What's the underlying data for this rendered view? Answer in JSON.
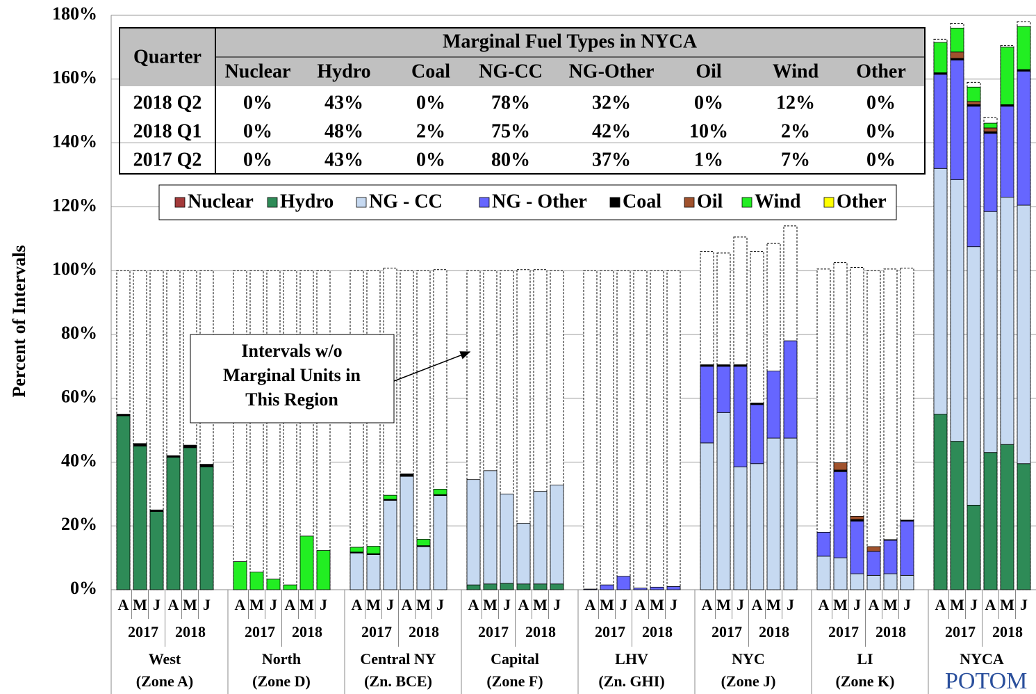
{
  "chart_data": {
    "type": "stacked_bar",
    "y_label": "Percent of Intervals",
    "ylim": [
      0,
      180
    ],
    "yticks": [
      {
        "value": 0,
        "label": "0%"
      },
      {
        "value": 20,
        "label": "20%"
      },
      {
        "value": 40,
        "label": "40%"
      },
      {
        "value": 60,
        "label": "60%"
      },
      {
        "value": 80,
        "label": "80%"
      },
      {
        "value": 100,
        "label": "100%"
      },
      {
        "value": 120,
        "label": "120%"
      },
      {
        "value": 140,
        "label": "140%"
      },
      {
        "value": 160,
        "label": "160%"
      },
      {
        "value": 180,
        "label": "180%"
      }
    ],
    "grid": true,
    "categories": [
      "A",
      "M",
      "J",
      "A",
      "M",
      "J",
      "A",
      "M",
      "J",
      "A",
      "M",
      "J",
      "A",
      "M",
      "J",
      "A",
      "M",
      "J",
      "A",
      "M",
      "J",
      "A",
      "M",
      "J",
      "A",
      "M",
      "J",
      "A",
      "M",
      "J",
      "A",
      "M",
      "J",
      "A",
      "M",
      "J",
      "A",
      "M",
      "J",
      "A",
      "M",
      "J",
      "A",
      "M",
      "J",
      "A",
      "M",
      "J"
    ],
    "years": [
      "2017",
      "2018",
      "2017",
      "2018",
      "2017",
      "2018",
      "2017",
      "2018",
      "2017",
      "2018",
      "2017",
      "2018",
      "2017",
      "2018",
      "2017",
      "2018"
    ],
    "group_labels": [
      "West",
      "North",
      "Central NY",
      "Capital",
      "LHV",
      "NYC",
      "LI",
      "NYCA"
    ],
    "group_sublabels": [
      "(Zone A)",
      "(Zone D)",
      "(Zn. BCE)",
      "(Zone F)",
      "(Zn. GHI)",
      "(Zone J)",
      "(Zone K)",
      ""
    ],
    "series": [
      {
        "name": "Nuclear",
        "color": "#a33a3a",
        "values": [
          0,
          0,
          0,
          0,
          0,
          0,
          0,
          0,
          0,
          0,
          0,
          0,
          0,
          0,
          0,
          0,
          0,
          0,
          0,
          0,
          0,
          0,
          0,
          0,
          0,
          0,
          0,
          0,
          0,
          0,
          0,
          0,
          0,
          0,
          0,
          0,
          0,
          0,
          0,
          0,
          0,
          0,
          0,
          0,
          0,
          0,
          0,
          0
        ]
      },
      {
        "name": "Hydro",
        "color": "#2e8b57",
        "values": [
          54.5,
          45,
          24.5,
          41.5,
          44.5,
          38.5,
          0,
          0,
          0,
          0,
          0,
          0,
          0,
          0,
          0,
          0,
          0,
          0,
          1.5,
          1.8,
          2,
          1.8,
          1.8,
          1.8,
          0,
          0,
          0,
          0,
          0,
          0,
          0,
          0,
          0,
          0,
          0,
          0,
          0,
          0,
          0,
          0,
          0,
          0,
          55,
          46.5,
          26.5,
          43,
          45.5,
          39.5
        ]
      },
      {
        "name": "NG - CC",
        "color": "#c6d9f1",
        "values": [
          0,
          0,
          0,
          0,
          0,
          0,
          0,
          0,
          0,
          0,
          0,
          0,
          11.5,
          11,
          28,
          35.5,
          13.5,
          29.5,
          33,
          35.5,
          28,
          19,
          29,
          31,
          0,
          0,
          0,
          0,
          0,
          0,
          46,
          55.5,
          38.5,
          39.5,
          47.5,
          47.5,
          10.5,
          10,
          5,
          4.5,
          5,
          4.5,
          77,
          82,
          81,
          75.5,
          77.5,
          81
        ]
      },
      {
        "name": "NG - Other",
        "color": "#6666ff",
        "values": [
          0,
          0,
          0,
          0,
          0,
          0,
          0,
          0,
          0,
          0,
          0,
          0,
          0,
          0,
          0,
          0,
          0,
          0,
          0,
          0,
          0,
          0,
          0,
          0,
          0.2,
          1.5,
          4.2,
          0.5,
          0.8,
          1.0,
          24,
          14.5,
          31.5,
          18.5,
          21,
          30.5,
          7.5,
          27,
          16.5,
          7.5,
          10.5,
          17,
          29.5,
          37.5,
          44,
          24.5,
          28.5,
          42
        ]
      },
      {
        "name": "Coal",
        "color": "#000000",
        "values": [
          0.5,
          0.8,
          0.5,
          0.5,
          0.8,
          0.8,
          0,
          0,
          0,
          0,
          0,
          0,
          0.3,
          0.3,
          0.3,
          0.8,
          0.3,
          0.3,
          0,
          0,
          0,
          0,
          0,
          0,
          0,
          0,
          0,
          0,
          0,
          0,
          0.5,
          0.5,
          0.5,
          0.5,
          0,
          0,
          0,
          0.5,
          0.5,
          0,
          0.2,
          0.3,
          0.5,
          0.5,
          0.5,
          0.5,
          0.5,
          0.5
        ]
      },
      {
        "name": "Oil",
        "color": "#a0522d",
        "values": [
          0,
          0,
          0,
          0,
          0,
          0,
          0,
          0,
          0,
          0,
          0,
          0,
          0,
          0,
          0,
          0,
          0,
          0,
          0,
          0,
          0,
          0,
          0,
          0,
          0,
          0,
          0,
          0,
          0,
          0,
          0,
          0,
          0,
          0,
          0,
          0,
          0,
          2.3,
          1,
          1.5,
          0,
          0,
          0,
          2,
          1,
          1.2,
          0,
          0
        ]
      },
      {
        "name": "Wind",
        "color": "#22ee22",
        "values": [
          0,
          0,
          0,
          0,
          0,
          0,
          8.8,
          5.5,
          3.3,
          1.5,
          16.8,
          12.3,
          1.5,
          2.3,
          1.3,
          0,
          2,
          1.7,
          0,
          0,
          0,
          0,
          0,
          0,
          0,
          0,
          0,
          0,
          0,
          0,
          0,
          0,
          0,
          0,
          0,
          0,
          0,
          0,
          0,
          0,
          0,
          0,
          9.5,
          7.5,
          4.5,
          1.5,
          18,
          13.5
        ]
      },
      {
        "name": "Other",
        "color": "#ffff00",
        "values": [
          0,
          0,
          0,
          0,
          0,
          0,
          0,
          0,
          0,
          0,
          0,
          0,
          0,
          0,
          0,
          0,
          0,
          0,
          0,
          0,
          0,
          0,
          0,
          0,
          0,
          0,
          0,
          0,
          0,
          0,
          0,
          0,
          0,
          0,
          0,
          0,
          0,
          0,
          0,
          0,
          0,
          0,
          0,
          0,
          0,
          0,
          0,
          0
        ]
      }
    ],
    "outline_values": [
      100,
      100,
      100,
      100,
      100,
      100,
      100,
      100,
      100,
      100,
      100,
      100,
      100,
      100,
      100.8,
      100,
      100,
      100.3,
      100,
      100,
      100,
      100.3,
      100.3,
      100,
      100,
      100,
      100,
      100,
      100,
      100,
      106,
      105.5,
      110.5,
      106,
      108.5,
      114,
      100.5,
      102.5,
      101,
      100,
      100.5,
      100.8,
      172.5,
      177.5,
      159,
      148,
      170.5,
      178
    ],
    "annotation": [
      "Intervals w/o",
      "Marginal Units in",
      "This Region"
    ],
    "logo": "POTOM",
    "table": {
      "quarter_header": "Quarter",
      "title": "Marginal Fuel Types in NYCA",
      "columns": [
        "Nuclear",
        "Hydro",
        "Coal",
        "NG-CC",
        "NG-Other",
        "Oil",
        "Wind",
        "Other"
      ],
      "rows": [
        [
          "2018 Q2",
          "0%",
          "43%",
          "0%",
          "78%",
          "32%",
          "0%",
          "12%",
          "0%"
        ],
        [
          "2018 Q1",
          "0%",
          "48%",
          "2%",
          "75%",
          "42%",
          "10%",
          "2%",
          "0%"
        ],
        [
          "2017 Q2",
          "0%",
          "43%",
          "0%",
          "80%",
          "37%",
          "1%",
          "7%",
          "0%"
        ]
      ]
    }
  }
}
